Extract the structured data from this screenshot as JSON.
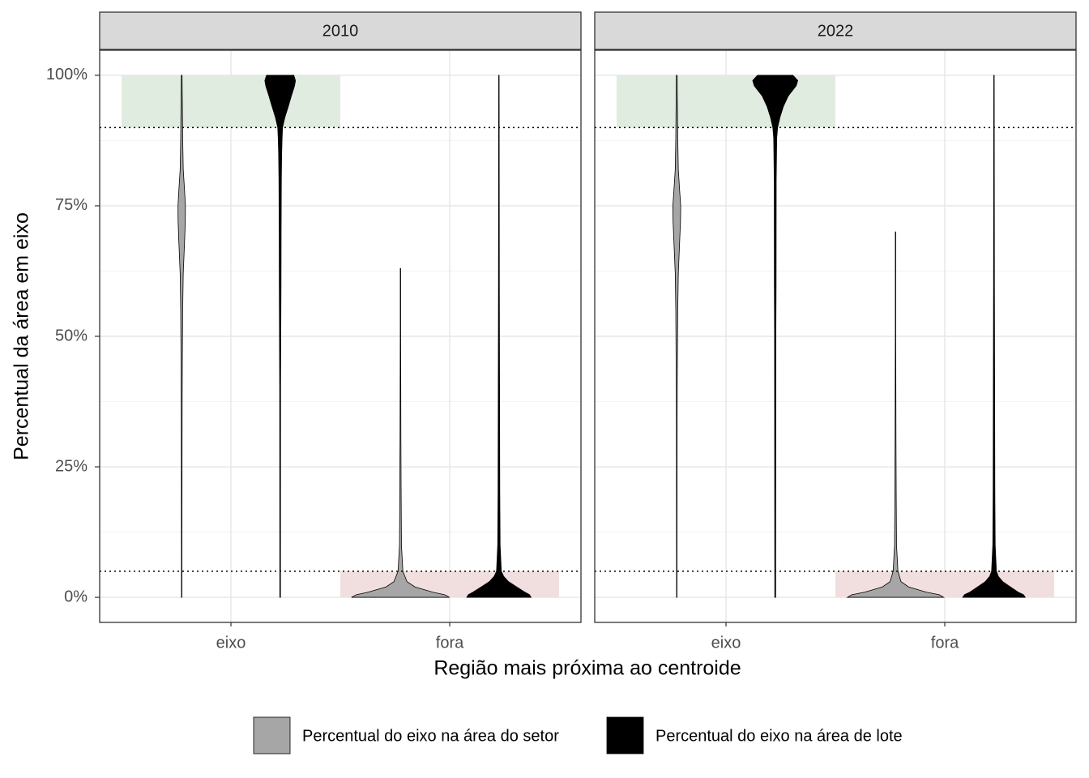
{
  "chart_data": {
    "type": "violin",
    "xlabel": "Região mais próxima ao centroide",
    "ylabel": "Percentual da área em eixo",
    "categories": [
      "eixo",
      "fora"
    ],
    "ylim": [
      -4.8,
      104.8
    ],
    "yticks": [
      {
        "value": 0,
        "label": "0%"
      },
      {
        "value": 25,
        "label": "25%"
      },
      {
        "value": 50,
        "label": "50%"
      },
      {
        "value": 75,
        "label": "75%"
      },
      {
        "value": 100,
        "label": "100%"
      }
    ],
    "minor_yticks": [
      12.5,
      37.5,
      62.5,
      87.5
    ],
    "grid": true,
    "legend_position": "bottom",
    "hlines": [
      90,
      5
    ],
    "bands": [
      {
        "category": "eixo",
        "ymin": 90,
        "ymax": 100,
        "color": "#e0ece0"
      },
      {
        "category": "fora",
        "ymin": 0,
        "ymax": 5,
        "color": "#f1dfdf"
      }
    ],
    "series": [
      {
        "name": "Percentual do eixo na área do setor",
        "color": "#a6a6a6"
      },
      {
        "name": "Percentual do eixo na área de lote",
        "color": "#000000"
      }
    ],
    "facets": [
      {
        "title": "2010",
        "violins": [
          [
            {
              "y": [
                0,
                25,
                35,
                45,
                55,
                62,
                68,
                72,
                75,
                78,
                82,
                88,
                95,
                100
              ],
              "width": [
                0.001,
                0.0015,
                0.002,
                0.003,
                0.0045,
                0.007,
                0.013,
                0.0165,
                0.017,
                0.013,
                0.007,
                0.0045,
                0.003,
                0.0015
              ]
            },
            {
              "y": [
                0,
                0.5,
                1,
                2,
                3,
                5,
                10,
                20,
                30,
                40,
                50,
                63
              ],
              "width": [
                0.224,
                0.202,
                0.147,
                0.066,
                0.03,
                0.011,
                0.0045,
                0.003,
                0.002,
                0.0015,
                0.001,
                0.001
              ]
            }
          ],
          [
            {
              "y": [
                0,
                40,
                50,
                60,
                70,
                80,
                85,
                88,
                90,
                92,
                94,
                96,
                98,
                99,
                100
              ],
              "width": [
                0.0015,
                0.002,
                0.003,
                0.004,
                0.0045,
                0.0055,
                0.007,
                0.009,
                0.011,
                0.022,
                0.037,
                0.051,
                0.066,
                0.07,
                0.0625
              ]
            },
            {
              "y": [
                0,
                0.5,
                1,
                2,
                3,
                4,
                5,
                10,
                20,
                40,
                60,
                80,
                100
              ],
              "width": [
                0.147,
                0.14,
                0.118,
                0.081,
                0.044,
                0.022,
                0.011,
                0.0055,
                0.004,
                0.003,
                0.002,
                0.0015,
                0.001
              ]
            }
          ]
        ]
      },
      {
        "title": "2022",
        "violins": [
          [
            {
              "y": [
                0,
                34,
                45,
                55,
                62,
                68,
                72,
                75,
                78,
                82,
                88,
                95,
                100
              ],
              "width": [
                0.001,
                0.0015,
                0.003,
                0.0045,
                0.007,
                0.013,
                0.017,
                0.018,
                0.013,
                0.007,
                0.0045,
                0.003,
                0.0015
              ]
            },
            {
              "y": [
                0,
                0.5,
                1,
                2,
                3,
                5,
                10,
                20,
                30,
                40,
                50,
                60,
                70
              ],
              "width": [
                0.22,
                0.2,
                0.14,
                0.06,
                0.025,
                0.011,
                0.0045,
                0.003,
                0.002,
                0.0015,
                0.001,
                0.001,
                0.001
              ]
            }
          ],
          [
            {
              "y": [
                0,
                50,
                60,
                80,
                88,
                90,
                92,
                94,
                96,
                98,
                99,
                100
              ],
              "width": [
                0.002,
                0.003,
                0.004,
                0.0045,
                0.007,
                0.011,
                0.022,
                0.037,
                0.059,
                0.096,
                0.103,
                0.081
              ]
            },
            {
              "y": [
                0,
                0.5,
                1,
                2,
                3,
                4,
                5,
                10,
                20,
                40,
                60,
                80,
                100
              ],
              "width": [
                0.143,
                0.135,
                0.11,
                0.075,
                0.04,
                0.02,
                0.011,
                0.0055,
                0.004,
                0.003,
                0.002,
                0.0015,
                0.001
              ]
            }
          ]
        ]
      }
    ]
  }
}
